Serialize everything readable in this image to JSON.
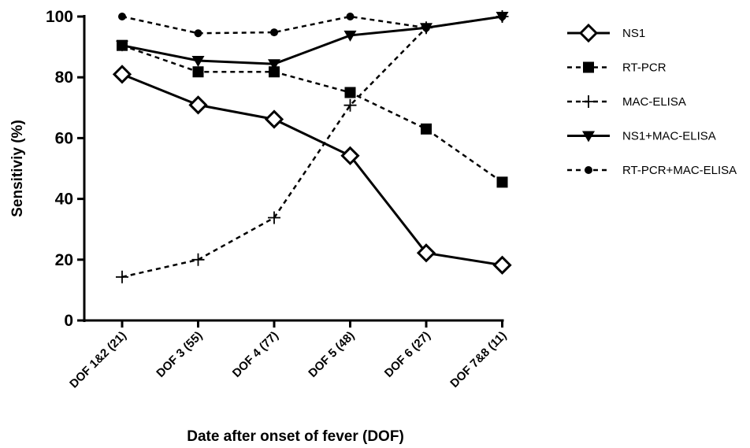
{
  "chart_data": {
    "type": "line",
    "title": "",
    "xlabel": "Date after onset of fever (DOF)",
    "ylabel": "Sensitiviy (%)",
    "categories": [
      "DOF 1&2 (21)",
      "DOF 3 (55)",
      "DOF 4 (77)",
      "DOF 5 (48)",
      "DOF 6 (27)",
      "DOF 7&8 (11)"
    ],
    "ylim": [
      0,
      100
    ],
    "yticks": [
      "0",
      "20",
      "40",
      "60",
      "80",
      "100"
    ],
    "grid": false,
    "legend_position": "right",
    "series": [
      {
        "name": "NS1",
        "values": [
          81,
          70.9,
          66.2,
          54.2,
          22.2,
          18.2
        ],
        "marker": "diamond-open",
        "dashed": false
      },
      {
        "name": "RT-PCR",
        "values": [
          90.5,
          81.8,
          81.8,
          75,
          63,
          45.5
        ],
        "marker": "square",
        "dashed": true
      },
      {
        "name": "MAC-ELISA",
        "values": [
          14.3,
          20,
          33.8,
          70.8,
          96.3,
          100
        ],
        "marker": "plus",
        "dashed": true
      },
      {
        "name": "NS1+MAC-ELISA",
        "values": [
          90.5,
          85.5,
          84.4,
          93.8,
          96.3,
          100
        ],
        "marker": "triangle-down",
        "dashed": false
      },
      {
        "name": "RT-PCR+MAC-ELISA",
        "values": [
          100,
          94.5,
          94.8,
          100,
          96.3,
          100
        ],
        "marker": "circle",
        "dashed": true
      }
    ]
  }
}
